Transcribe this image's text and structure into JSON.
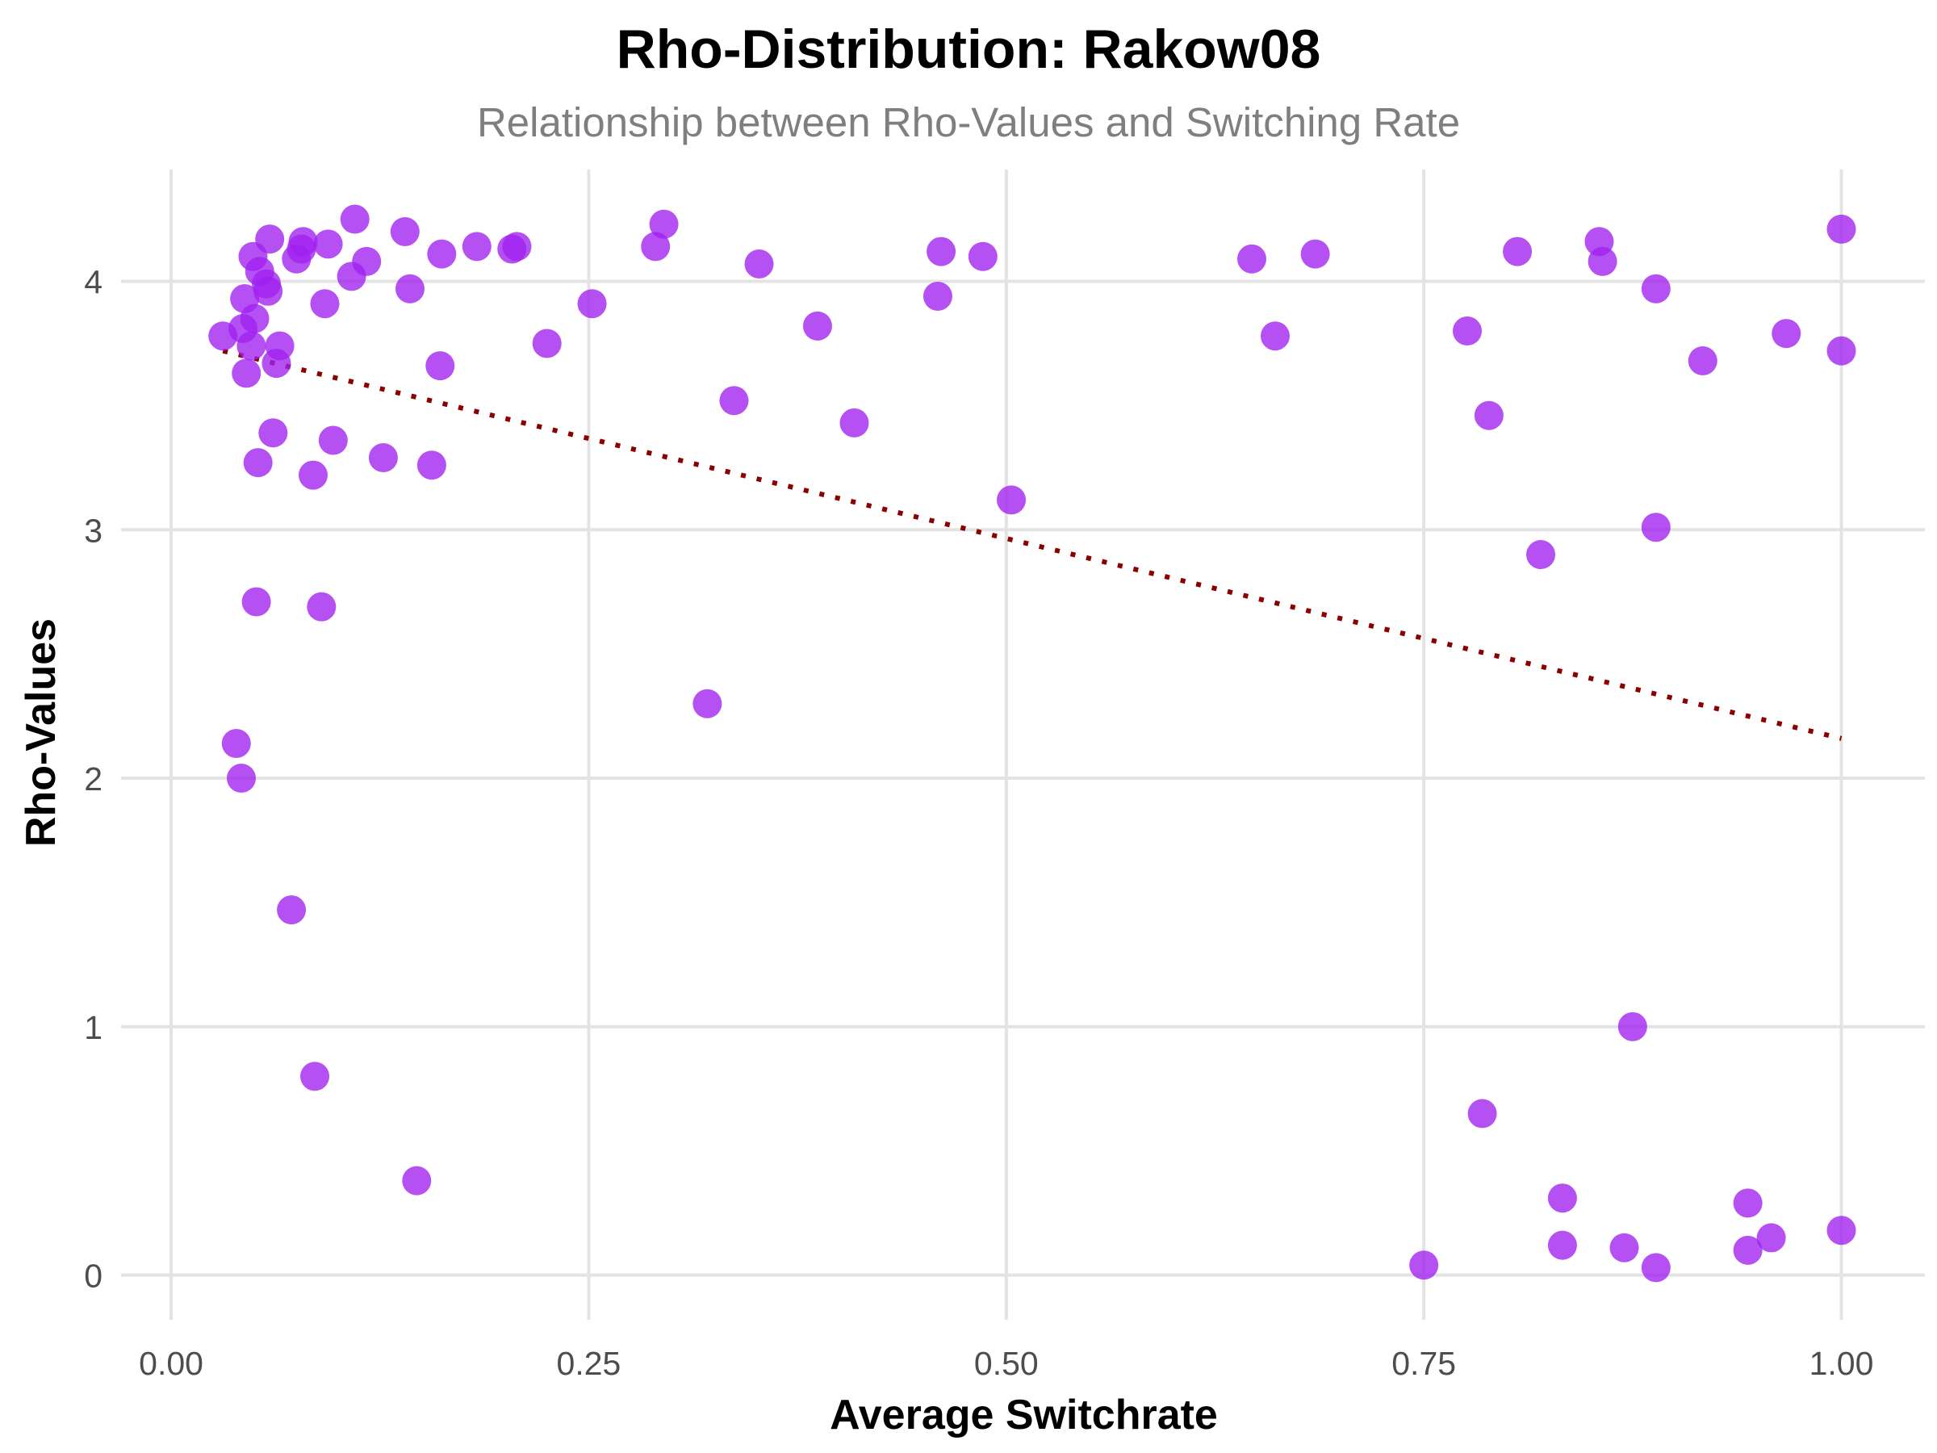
{
  "chart_data": {
    "type": "scatter",
    "title": "Rho-Distribution: Rakow08",
    "subtitle": "Relationship between Rho-Values and Switching Rate",
    "xlabel": "Average Switchrate",
    "ylabel": "Rho-Values",
    "xlim": [
      -0.03,
      1.05
    ],
    "ylim": [
      -0.18,
      4.45
    ],
    "x_ticks": [
      0.0,
      0.25,
      0.5,
      0.75,
      1.0
    ],
    "x_tick_labels": [
      "0.00",
      "0.25",
      "0.50",
      "0.75",
      "1.00"
    ],
    "y_ticks": [
      0,
      1,
      2,
      3,
      4
    ],
    "y_tick_labels": [
      "0",
      "1",
      "2",
      "3",
      "4"
    ],
    "grid": true,
    "point_color": "#a020f0",
    "trend_color": "#8b0000",
    "trend_line": {
      "style": "dotted",
      "x": [
        0.031,
        1.0
      ],
      "y": [
        3.72,
        2.16
      ]
    },
    "points": [
      {
        "x": 0.031,
        "y": 3.78
      },
      {
        "x": 0.039,
        "y": 2.14
      },
      {
        "x": 0.042,
        "y": 2.0
      },
      {
        "x": 0.043,
        "y": 3.81
      },
      {
        "x": 0.044,
        "y": 3.93
      },
      {
        "x": 0.045,
        "y": 3.63
      },
      {
        "x": 0.048,
        "y": 3.74
      },
      {
        "x": 0.049,
        "y": 4.1
      },
      {
        "x": 0.05,
        "y": 3.85
      },
      {
        "x": 0.051,
        "y": 2.71
      },
      {
        "x": 0.052,
        "y": 3.27
      },
      {
        "x": 0.053,
        "y": 4.04
      },
      {
        "x": 0.057,
        "y": 3.99
      },
      {
        "x": 0.058,
        "y": 3.96
      },
      {
        "x": 0.059,
        "y": 4.17
      },
      {
        "x": 0.061,
        "y": 3.39
      },
      {
        "x": 0.063,
        "y": 3.67
      },
      {
        "x": 0.065,
        "y": 3.74
      },
      {
        "x": 0.072,
        "y": 1.47
      },
      {
        "x": 0.075,
        "y": 4.09
      },
      {
        "x": 0.078,
        "y": 4.13
      },
      {
        "x": 0.079,
        "y": 4.16
      },
      {
        "x": 0.085,
        "y": 3.22
      },
      {
        "x": 0.086,
        "y": 0.8
      },
      {
        "x": 0.09,
        "y": 2.69
      },
      {
        "x": 0.092,
        "y": 3.91
      },
      {
        "x": 0.094,
        "y": 4.15
      },
      {
        "x": 0.097,
        "y": 3.36
      },
      {
        "x": 0.108,
        "y": 4.02
      },
      {
        "x": 0.11,
        "y": 4.25
      },
      {
        "x": 0.117,
        "y": 4.08
      },
      {
        "x": 0.127,
        "y": 3.29
      },
      {
        "x": 0.14,
        "y": 4.2
      },
      {
        "x": 0.143,
        "y": 3.97
      },
      {
        "x": 0.147,
        "y": 0.38
      },
      {
        "x": 0.156,
        "y": 3.26
      },
      {
        "x": 0.161,
        "y": 3.66
      },
      {
        "x": 0.162,
        "y": 4.11
      },
      {
        "x": 0.183,
        "y": 4.14
      },
      {
        "x": 0.204,
        "y": 4.13
      },
      {
        "x": 0.207,
        "y": 4.14
      },
      {
        "x": 0.225,
        "y": 3.75
      },
      {
        "x": 0.252,
        "y": 3.91
      },
      {
        "x": 0.29,
        "y": 4.14
      },
      {
        "x": 0.295,
        "y": 4.23
      },
      {
        "x": 0.321,
        "y": 2.3
      },
      {
        "x": 0.337,
        "y": 3.52
      },
      {
        "x": 0.352,
        "y": 4.07
      },
      {
        "x": 0.387,
        "y": 3.82
      },
      {
        "x": 0.409,
        "y": 3.43
      },
      {
        "x": 0.459,
        "y": 3.94
      },
      {
        "x": 0.461,
        "y": 4.12
      },
      {
        "x": 0.486,
        "y": 4.1
      },
      {
        "x": 0.503,
        "y": 3.12
      },
      {
        "x": 0.647,
        "y": 4.09
      },
      {
        "x": 0.661,
        "y": 3.78
      },
      {
        "x": 0.685,
        "y": 4.11
      },
      {
        "x": 0.75,
        "y": 0.04
      },
      {
        "x": 0.776,
        "y": 3.8
      },
      {
        "x": 0.785,
        "y": 0.65
      },
      {
        "x": 0.789,
        "y": 3.46
      },
      {
        "x": 0.806,
        "y": 4.12
      },
      {
        "x": 0.82,
        "y": 2.9
      },
      {
        "x": 0.833,
        "y": 0.31
      },
      {
        "x": 0.833,
        "y": 0.12
      },
      {
        "x": 0.855,
        "y": 4.16
      },
      {
        "x": 0.857,
        "y": 4.08
      },
      {
        "x": 0.87,
        "y": 0.11
      },
      {
        "x": 0.875,
        "y": 1.0
      },
      {
        "x": 0.889,
        "y": 3.97
      },
      {
        "x": 0.889,
        "y": 3.01
      },
      {
        "x": 0.889,
        "y": 0.03
      },
      {
        "x": 0.917,
        "y": 3.68
      },
      {
        "x": 0.944,
        "y": 0.29
      },
      {
        "x": 0.944,
        "y": 0.1
      },
      {
        "x": 0.958,
        "y": 0.15
      },
      {
        "x": 0.967,
        "y": 3.79
      },
      {
        "x": 1.0,
        "y": 4.21
      },
      {
        "x": 1.0,
        "y": 3.72
      },
      {
        "x": 1.0,
        "y": 0.18
      }
    ]
  }
}
